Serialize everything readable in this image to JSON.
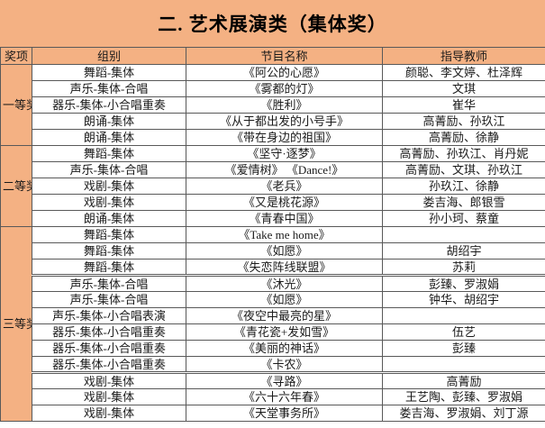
{
  "title": "二. 艺术展演类（集体奖）",
  "colors": {
    "accent_peach": "#F4B183",
    "grid_border": "#595959",
    "row_background": "#FFFFFF",
    "text": "#000000"
  },
  "table": {
    "columns": [
      "奖项",
      "组别",
      "节目名称",
      "指导教师"
    ],
    "groups": [
      {
        "award": "一等奖",
        "rows": [
          {
            "group": "舞蹈-集体",
            "program": "《阿公的心愿》",
            "teachers": "颜聪、李文婷、杜泽辉"
          },
          {
            "group": "声乐-集体-合唱",
            "program": "《雾都的灯》",
            "teachers": "文琪"
          },
          {
            "group": "器乐-集体-小合唱重奏",
            "program": "《胜利》",
            "teachers": "崔华"
          },
          {
            "group": "朗诵-集体",
            "program": "《从于都出发的小号手》",
            "teachers": "高菁励、孙玖江"
          },
          {
            "group": "朗诵-集体",
            "program": "《带在身边的祖国》",
            "teachers": "高菁励、徐静"
          }
        ]
      },
      {
        "award": "二等奖",
        "rows": [
          {
            "group": "舞蹈-集体",
            "program": "《坚守·逐梦》",
            "teachers": "高菁励、孙玖江、肖丹妮"
          },
          {
            "group": "声乐-集体-合唱",
            "program": "《爱情树》 《Dance!》",
            "teachers": "高菁励、文琪、孙玖江"
          },
          {
            "group": "戏剧-集体",
            "program": "《老兵》",
            "teachers": "孙玖江、徐静"
          },
          {
            "group": "戏剧-集体",
            "program": "《又是桃花源》",
            "teachers": "娄吉海、郎银雪"
          },
          {
            "group": "朗诵-集体",
            "program": "《青春中国》",
            "teachers": "孙小珂、蔡童"
          }
        ]
      },
      {
        "award": "三等奖",
        "rows": [
          {
            "group": "舞蹈-集体",
            "program": "《Take me home》",
            "teachers": ""
          },
          {
            "group": "舞蹈-集体",
            "program": "《如愿》",
            "teachers": "胡绍宇"
          },
          {
            "group": "舞蹈-集体",
            "program": "《失恋阵线联盟》",
            "teachers": "苏莉"
          },
          {
            "group": "声乐-集体-合唱",
            "program": "《沐光》",
            "teachers": "彭臻、罗淑娟"
          },
          {
            "group": "声乐-集体-合唱",
            "program": "《如愿》",
            "teachers": "钟华、胡绍宇"
          },
          {
            "group": "声乐-集体-小合唱表演",
            "program": "《夜空中最亮的星》",
            "teachers": ""
          },
          {
            "group": "器乐-集体-小合唱重奏",
            "program": "《青花瓷+发如雪》",
            "teachers": "伍艺"
          },
          {
            "group": "器乐-集体-小合唱重奏",
            "program": "《美丽的神话》",
            "teachers": "彭臻"
          },
          {
            "group": "器乐-集体-小合唱重奏",
            "program": "《卡农》",
            "teachers": ""
          },
          {
            "group": "戏剧-集体",
            "program": "《寻路》",
            "teachers": "高菁励"
          },
          {
            "group": "戏剧-集体",
            "program": "《六十六年春》",
            "teachers": "王艺陶、彭臻、罗淑娟"
          },
          {
            "group": "戏剧-集体",
            "program": "《天堂事务所》",
            "teachers": "娄吉海、罗淑娟、刘丁源"
          }
        ]
      }
    ]
  }
}
